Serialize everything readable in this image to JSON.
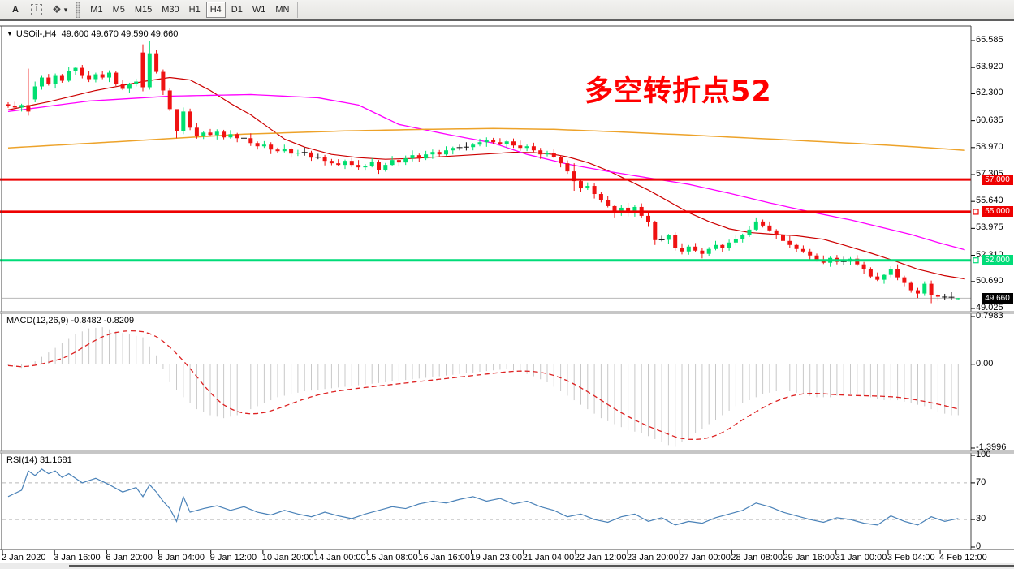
{
  "toolbar": {
    "tool_a_label": "A",
    "tool_t_label": "T",
    "icons": {
      "arrow_objects": "❖",
      "dropdown_caret": "▾"
    },
    "timeframes": [
      "M1",
      "M5",
      "M15",
      "M30",
      "H1",
      "H4",
      "D1",
      "W1",
      "MN"
    ],
    "active_timeframe": "H4"
  },
  "main_chart": {
    "collapse_triangle": "▼",
    "symbol_timeframe": "USOil-,H4",
    "ohlc_text": "49.600 49.670 49.590 49.660",
    "annotation": {
      "text": "多空转折点52",
      "color": "#ff0000"
    }
  },
  "chart_data": {
    "type": "candlestick",
    "symbol": "USOil-",
    "timeframe": "H4",
    "last_bar": {
      "open": 49.6,
      "high": 49.67,
      "low": 49.59,
      "close": 49.66
    },
    "colors": {
      "bull": "#00df70",
      "bear": "#ef1212",
      "doji": "#111111",
      "ma_fast": "#cc0000",
      "ma_medium": "#ff00ff",
      "ma_slow": "#eda229",
      "level_red": "#ee0000",
      "level_green": "#00dc78",
      "current_price_line": "#b8b8b8",
      "macd_hist": "#c8c8c8",
      "macd_signal": "#dd2222",
      "rsi_line": "#4a82b8",
      "rsi_levels_dash": "#b9b9b9",
      "frame": "#444444"
    },
    "price_axis": {
      "ticks": [
        "65.585",
        "63.920",
        "62.300",
        "60.635",
        "58.970",
        "57.305",
        "55.640",
        "53.975",
        "52.310",
        "50.690",
        "49.025"
      ],
      "values": [
        65.585,
        63.92,
        62.3,
        60.635,
        58.97,
        57.305,
        55.64,
        53.975,
        52.31,
        50.69,
        49.025
      ]
    },
    "time_axis": {
      "labels": [
        "2 Jan 2020",
        "3 Jan 16:00",
        "6 Jan 20:00",
        "8 Jan 04:00",
        "9 Jan 12:00",
        "10 Jan 20:00",
        "14 Jan 00:00",
        "15 Jan 08:00",
        "16 Jan 16:00",
        "19 Jan 23:00",
        "21 Jan 04:00",
        "22 Jan 12:00",
        "23 Jan 20:00",
        "27 Jan 00:00",
        "28 Jan 08:00",
        "29 Jan 16:00",
        "31 Jan 00:00",
        "3 Feb 04:00",
        "4 Feb 12:00"
      ]
    },
    "candles": {
      "first_open": 61.65,
      "doji_threshold": 0.031,
      "closes": [
        61.55,
        61.45,
        61.6,
        61.2,
        62.75,
        63.3,
        62.9,
        63.4,
        63.1,
        63.7,
        63.9,
        63.4,
        63.2,
        63.5,
        63.3,
        63.6,
        62.9,
        62.6,
        62.9,
        63.05,
        62.7,
        64.8,
        63.65,
        62.5,
        61.35,
        60.0,
        61.2,
        60.2,
        59.7,
        59.9,
        59.75,
        59.95,
        59.6,
        59.8,
        59.55,
        59.55,
        59.25,
        59.05,
        59.15,
        58.85,
        58.75,
        58.9,
        58.6,
        58.65,
        58.67,
        58.35,
        58.37,
        58.15,
        58.0,
        57.9,
        58.15,
        57.9,
        57.75,
        57.85,
        58.1,
        57.6,
        57.9,
        58.2,
        58.05,
        58.3,
        58.5,
        58.3,
        58.55,
        58.7,
        58.55,
        58.8,
        58.95,
        58.97,
        59.0,
        59.15,
        59.3,
        59.45,
        59.3,
        59.2,
        59.35,
        59.1,
        58.95,
        59.05,
        58.8,
        58.55,
        58.65,
        58.4,
        58.0,
        57.5,
        56.9,
        56.45,
        56.6,
        56.1,
        55.7,
        55.35,
        54.9,
        55.25,
        54.9,
        55.3,
        54.75,
        54.35,
        53.25,
        53.27,
        53.55,
        52.75,
        52.55,
        52.85,
        52.6,
        52.4,
        52.7,
        52.95,
        52.75,
        53.1,
        53.3,
        53.55,
        53.9,
        54.4,
        54.15,
        53.85,
        53.55,
        53.2,
        52.95,
        52.7,
        52.55,
        52.3,
        52.05,
        51.85,
        52.15,
        51.9,
        51.92,
        52.1,
        51.75,
        51.45,
        51.0,
        50.8,
        51.1,
        51.45,
        50.95,
        50.6,
        50.15,
        49.95,
        50.55,
        49.85,
        49.75,
        49.73,
        49.72,
        49.66
      ],
      "open_overrides": {
        "4": 61.95,
        "20": 64.85,
        "141": 49.6
      },
      "hl_overrides": {
        "3": [
          63.85,
          60.95
        ],
        "20": [
          65.35,
          62.45
        ],
        "21": [
          65.585,
          62.55
        ],
        "25": [
          60.35,
          59.55
        ],
        "26": [
          61.45,
          59.8
        ],
        "55": [
          58.2,
          57.35
        ],
        "84": [
          58.0,
          56.3
        ],
        "96": [
          54.45,
          52.95
        ],
        "111": [
          54.65,
          53.8
        ],
        "134": [
          50.7,
          50.0
        ],
        "136": [
          50.7,
          49.8
        ],
        "137": [
          50.75,
          49.35
        ],
        "141": [
          49.67,
          49.59
        ]
      },
      "wick_up_cycle": [
        0.12,
        0.25,
        0.08,
        0.18,
        0.3,
        0.1,
        0.22,
        0.15
      ],
      "wick_dn_cycle": [
        0.2,
        0.1,
        0.28,
        0.12,
        0.08,
        0.25,
        0.15,
        0.18
      ]
    },
    "moving_averages": [
      {
        "name": "ma-fast-red",
        "color": "#cc0000",
        "width": 1.2,
        "points": [
          [
            0,
            61.3
          ],
          [
            6,
            61.8
          ],
          [
            13,
            62.5
          ],
          [
            20,
            63.05
          ],
          [
            24,
            63.3
          ],
          [
            27,
            63.15
          ],
          [
            30,
            62.5
          ],
          [
            33,
            61.7
          ],
          [
            36,
            61.0
          ],
          [
            38,
            60.4
          ],
          [
            41,
            59.5
          ],
          [
            44,
            59.0
          ],
          [
            48,
            58.55
          ],
          [
            52,
            58.35
          ],
          [
            56,
            58.25
          ],
          [
            60,
            58.3
          ],
          [
            64,
            58.4
          ],
          [
            68,
            58.5
          ],
          [
            72,
            58.6
          ],
          [
            75,
            58.68
          ],
          [
            78,
            58.66
          ],
          [
            81,
            58.55
          ],
          [
            83,
            58.4
          ],
          [
            86,
            58.05
          ],
          [
            89,
            57.55
          ],
          [
            92,
            56.95
          ],
          [
            95,
            56.35
          ],
          [
            98,
            55.65
          ],
          [
            101,
            54.95
          ],
          [
            104,
            54.4
          ],
          [
            107,
            53.95
          ],
          [
            110,
            53.72
          ],
          [
            114,
            53.6
          ],
          [
            117,
            53.52
          ],
          [
            121,
            53.3
          ],
          [
            124,
            52.95
          ],
          [
            128,
            52.45
          ],
          [
            132,
            51.9
          ],
          [
            135,
            51.45
          ],
          [
            139,
            51.05
          ],
          [
            142,
            50.85
          ]
        ]
      },
      {
        "name": "ma-medium-magenta",
        "color": "#ff00ff",
        "width": 1.3,
        "points": [
          [
            0,
            61.2
          ],
          [
            12,
            61.85
          ],
          [
            24,
            62.15
          ],
          [
            36,
            62.25
          ],
          [
            46,
            62.05
          ],
          [
            52,
            61.6
          ],
          [
            58,
            60.4
          ],
          [
            65,
            59.8
          ],
          [
            72,
            59.25
          ],
          [
            77,
            58.55
          ],
          [
            83,
            57.95
          ],
          [
            89,
            57.5
          ],
          [
            95,
            57.1
          ],
          [
            101,
            56.7
          ],
          [
            107,
            56.15
          ],
          [
            113,
            55.55
          ],
          [
            119,
            55.0
          ],
          [
            125,
            54.5
          ],
          [
            130,
            54.0
          ],
          [
            134,
            53.6
          ],
          [
            138,
            53.1
          ],
          [
            142,
            52.65
          ]
        ]
      },
      {
        "name": "ma-slow-orange",
        "color": "#eda229",
        "width": 1.5,
        "points": [
          [
            0,
            58.95
          ],
          [
            17,
            59.35
          ],
          [
            35,
            59.8
          ],
          [
            50,
            60.0
          ],
          [
            62,
            60.1
          ],
          [
            72,
            60.15
          ],
          [
            81,
            60.1
          ],
          [
            90,
            59.95
          ],
          [
            101,
            59.75
          ],
          [
            107,
            59.62
          ],
          [
            113,
            59.5
          ],
          [
            120,
            59.35
          ],
          [
            127,
            59.2
          ],
          [
            132,
            59.08
          ],
          [
            137,
            58.95
          ],
          [
            142,
            58.8
          ]
        ]
      }
    ],
    "horizontal_lines": [
      {
        "value": 57.0,
        "label": "57.000",
        "color": "#ee0000",
        "width": 3,
        "tag_bg": "#ee0000",
        "tag_fg": "#ffffff",
        "handle": false
      },
      {
        "value": 55.0,
        "label": "55.000",
        "color": "#ee0000",
        "width": 3,
        "tag_bg": "#ee0000",
        "tag_fg": "#ffffff",
        "handle": true
      },
      {
        "value": 52.0,
        "label": "52.000",
        "color": "#00dc78",
        "width": 3,
        "tag_bg": "#00dc78",
        "tag_fg": "#ffffff",
        "handle": true
      },
      {
        "value": 49.66,
        "label": "49.660",
        "color": "#b8b8b8",
        "width": 1,
        "tag_bg": "#000000",
        "tag_fg": "#ffffff",
        "handle": false,
        "is_current_price": true
      }
    ],
    "macd": {
      "label": "MACD(12,26,9)",
      "values_text": "-0.8482 -0.8209",
      "macd_value": -0.8482,
      "signal_value": -0.8209,
      "axis_ticks": [
        "0.7983",
        "0.00",
        "-1.3996"
      ],
      "axis_values": [
        0.7983,
        0.0,
        -1.3996
      ],
      "range": [
        -1.3996,
        0.7983
      ],
      "histogram_waypoints": [
        [
          0,
          -0.02
        ],
        [
          2,
          -0.06
        ],
        [
          4,
          0.05
        ],
        [
          6,
          0.2
        ],
        [
          8,
          0.35
        ],
        [
          10,
          0.5
        ],
        [
          12,
          0.6
        ],
        [
          14,
          0.62
        ],
        [
          16,
          0.55
        ],
        [
          18,
          0.5
        ],
        [
          20,
          0.45
        ],
        [
          22,
          0.15
        ],
        [
          24,
          -0.3
        ],
        [
          26,
          -0.55
        ],
        [
          28,
          -0.75
        ],
        [
          30,
          -0.85
        ],
        [
          32,
          -0.9
        ],
        [
          34,
          -0.85
        ],
        [
          36,
          -0.75
        ],
        [
          38,
          -0.65
        ],
        [
          40,
          -0.55
        ],
        [
          44,
          -0.45
        ],
        [
          48,
          -0.4
        ],
        [
          52,
          -0.35
        ],
        [
          56,
          -0.3
        ],
        [
          60,
          -0.25
        ],
        [
          64,
          -0.2
        ],
        [
          68,
          -0.15
        ],
        [
          72,
          -0.1
        ],
        [
          74,
          -0.08
        ],
        [
          76,
          -0.12
        ],
        [
          78,
          -0.2
        ],
        [
          80,
          -0.3
        ],
        [
          82,
          -0.45
        ],
        [
          84,
          -0.6
        ],
        [
          86,
          -0.75
        ],
        [
          88,
          -0.9
        ],
        [
          90,
          -1.0
        ],
        [
          92,
          -1.1
        ],
        [
          94,
          -1.15
        ],
        [
          96,
          -1.25
        ],
        [
          98,
          -1.35
        ],
        [
          99,
          -1.38
        ],
        [
          100,
          -1.3
        ],
        [
          102,
          -1.15
        ],
        [
          104,
          -1.0
        ],
        [
          106,
          -0.85
        ],
        [
          108,
          -0.7
        ],
        [
          110,
          -0.6
        ],
        [
          112,
          -0.5
        ],
        [
          114,
          -0.45
        ],
        [
          116,
          -0.45
        ],
        [
          118,
          -0.5
        ],
        [
          120,
          -0.55
        ],
        [
          122,
          -0.55
        ],
        [
          124,
          -0.5
        ],
        [
          126,
          -0.5
        ],
        [
          128,
          -0.55
        ],
        [
          130,
          -0.6
        ],
        [
          132,
          -0.6
        ],
        [
          134,
          -0.65
        ],
        [
          136,
          -0.7
        ],
        [
          138,
          -0.8
        ],
        [
          140,
          -0.85
        ],
        [
          141,
          -0.85
        ]
      ]
    },
    "rsi": {
      "label": "RSI(14)",
      "value_text": "31.1681",
      "value": 31.1681,
      "axis_ticks": [
        "100",
        "70",
        "30",
        "0"
      ],
      "axis_values": [
        100,
        70,
        30,
        0
      ],
      "levels": [
        70,
        30
      ],
      "range": [
        0,
        100
      ],
      "waypoints": [
        [
          0,
          55
        ],
        [
          2,
          62
        ],
        [
          3,
          83
        ],
        [
          4,
          78
        ],
        [
          5,
          85
        ],
        [
          6,
          80
        ],
        [
          7,
          83
        ],
        [
          8,
          76
        ],
        [
          9,
          80
        ],
        [
          11,
          70
        ],
        [
          13,
          75
        ],
        [
          15,
          68
        ],
        [
          17,
          60
        ],
        [
          19,
          65
        ],
        [
          20,
          55
        ],
        [
          21,
          68
        ],
        [
          22,
          60
        ],
        [
          23,
          50
        ],
        [
          24,
          42
        ],
        [
          25,
          28
        ],
        [
          26,
          55
        ],
        [
          27,
          38
        ],
        [
          29,
          42
        ],
        [
          31,
          45
        ],
        [
          33,
          40
        ],
        [
          35,
          44
        ],
        [
          37,
          38
        ],
        [
          39,
          35
        ],
        [
          41,
          40
        ],
        [
          43,
          36
        ],
        [
          45,
          33
        ],
        [
          47,
          38
        ],
        [
          49,
          34
        ],
        [
          51,
          31
        ],
        [
          53,
          36
        ],
        [
          55,
          40
        ],
        [
          57,
          44
        ],
        [
          59,
          42
        ],
        [
          61,
          47
        ],
        [
          63,
          50
        ],
        [
          65,
          48
        ],
        [
          67,
          52
        ],
        [
          69,
          55
        ],
        [
          71,
          50
        ],
        [
          73,
          53
        ],
        [
          75,
          47
        ],
        [
          77,
          50
        ],
        [
          79,
          44
        ],
        [
          81,
          40
        ],
        [
          83,
          33
        ],
        [
          85,
          36
        ],
        [
          87,
          30
        ],
        [
          89,
          27
        ],
        [
          91,
          33
        ],
        [
          93,
          36
        ],
        [
          95,
          28
        ],
        [
          97,
          32
        ],
        [
          99,
          24
        ],
        [
          101,
          28
        ],
        [
          103,
          26
        ],
        [
          105,
          32
        ],
        [
          107,
          36
        ],
        [
          109,
          40
        ],
        [
          111,
          48
        ],
        [
          113,
          44
        ],
        [
          115,
          38
        ],
        [
          117,
          34
        ],
        [
          119,
          30
        ],
        [
          121,
          27
        ],
        [
          123,
          32
        ],
        [
          125,
          30
        ],
        [
          127,
          26
        ],
        [
          129,
          24
        ],
        [
          131,
          34
        ],
        [
          133,
          28
        ],
        [
          135,
          24
        ],
        [
          137,
          33
        ],
        [
          139,
          28
        ],
        [
          141,
          31.17
        ]
      ]
    }
  }
}
